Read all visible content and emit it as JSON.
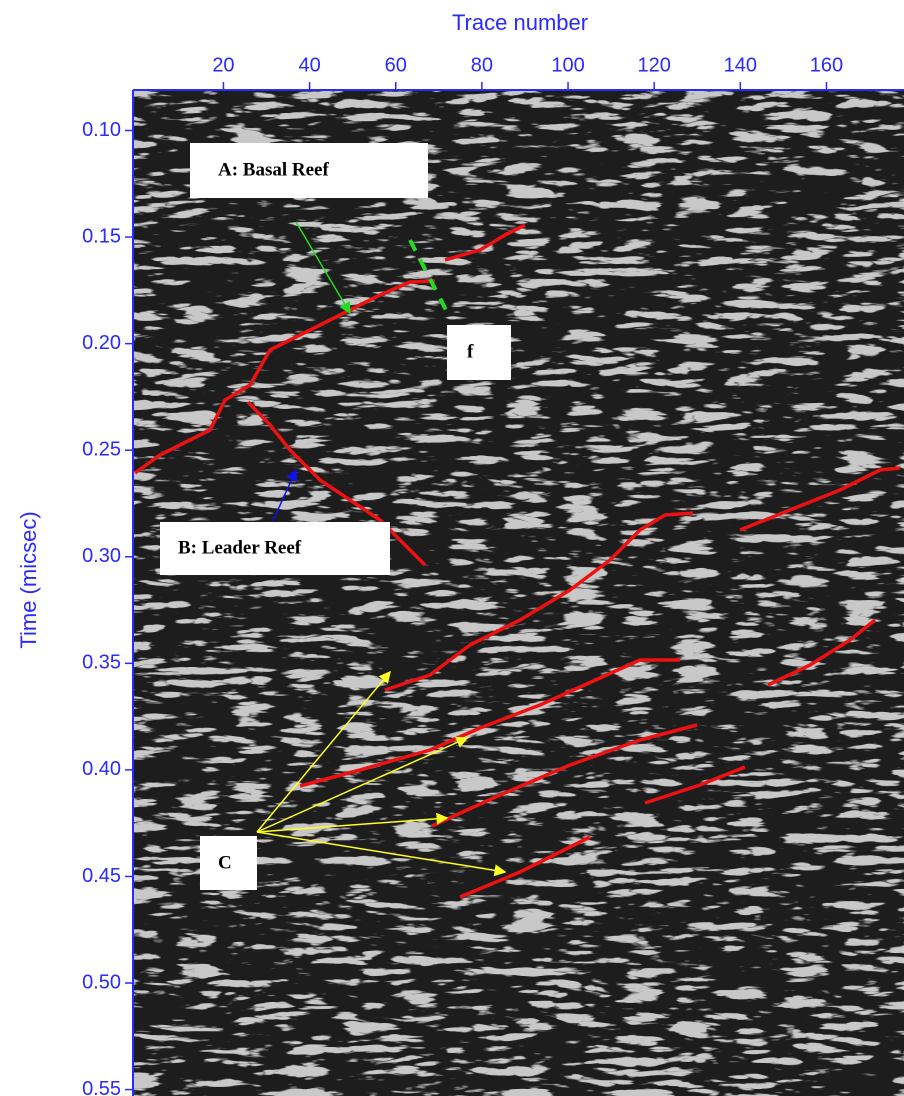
{
  "chart_data": {
    "type": "radargram",
    "xlabel": "Trace number",
    "ylabel": "Time (micsec)",
    "xlim": [
      -1,
      178
    ],
    "xticks": [
      20,
      40,
      60,
      80,
      100,
      120,
      140,
      160
    ],
    "ylim": [
      0.081,
      0.553
    ],
    "yticks": [
      {
        "value": 0.1,
        "label": "0.10"
      },
      0.15,
      {
        "value": 0.2,
        "label": "0.20"
      },
      0.25,
      {
        "value": 0.3,
        "label": "0.30"
      },
      0.35,
      {
        "value": 0.4,
        "label": "0.40"
      },
      0.45,
      {
        "value": 0.5,
        "label": "0.50"
      },
      0.55
    ],
    "axis_color": "#2a2aff",
    "annotations": [
      "A: Basal Reef",
      "f",
      "B: Leader Reef",
      "C"
    ]
  }
}
